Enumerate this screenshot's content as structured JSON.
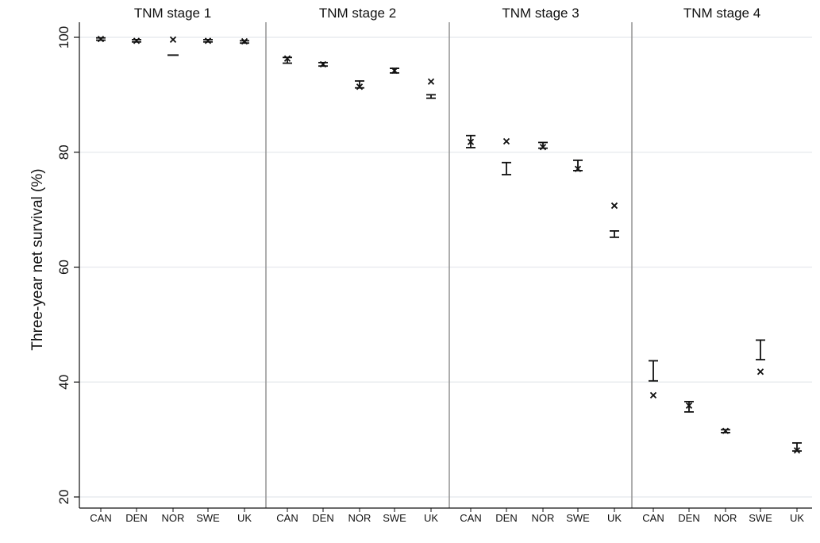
{
  "chart_data": {
    "type": "scatter",
    "ylabel": "Three-year net survival (%)",
    "ylim": [
      20,
      100
    ],
    "yticks": [
      20,
      40,
      60,
      80,
      100
    ],
    "grid": true,
    "categories": [
      "CAN",
      "DEN",
      "NOR",
      "SWE",
      "UK"
    ],
    "panels": [
      {
        "title": "TNM stage 1",
        "cross": [
          99.7,
          99.4,
          99.6,
          99.4,
          99.3
        ],
        "ci_low": [
          99.5,
          99.2,
          96.9,
          99.2,
          99.0
        ],
        "ci_high": [
          99.9,
          99.6,
          96.9,
          99.6,
          99.4
        ]
      },
      {
        "title": "TNM stage 2",
        "cross": [
          96.3,
          95.3,
          91.4,
          94.2,
          92.3
        ],
        "ci_low": [
          95.5,
          95.0,
          91.2,
          93.8,
          89.4
        ],
        "ci_high": [
          96.5,
          95.6,
          92.4,
          94.6,
          90.0
        ]
      },
      {
        "title": "TNM stage 3",
        "cross": [
          81.8,
          81.9,
          80.9,
          77.1,
          70.7
        ],
        "ci_low": [
          80.8,
          76.1,
          80.7,
          76.8,
          65.2
        ],
        "ci_high": [
          82.9,
          78.2,
          81.7,
          78.6,
          66.3
        ]
      },
      {
        "title": "TNM stage 4",
        "cross": [
          37.7,
          35.9,
          31.5,
          41.8,
          28.1
        ],
        "ci_low": [
          40.2,
          34.8,
          31.2,
          43.9,
          28.0
        ],
        "ci_high": [
          43.7,
          36.6,
          31.7,
          47.3,
          29.4
        ]
      }
    ]
  }
}
